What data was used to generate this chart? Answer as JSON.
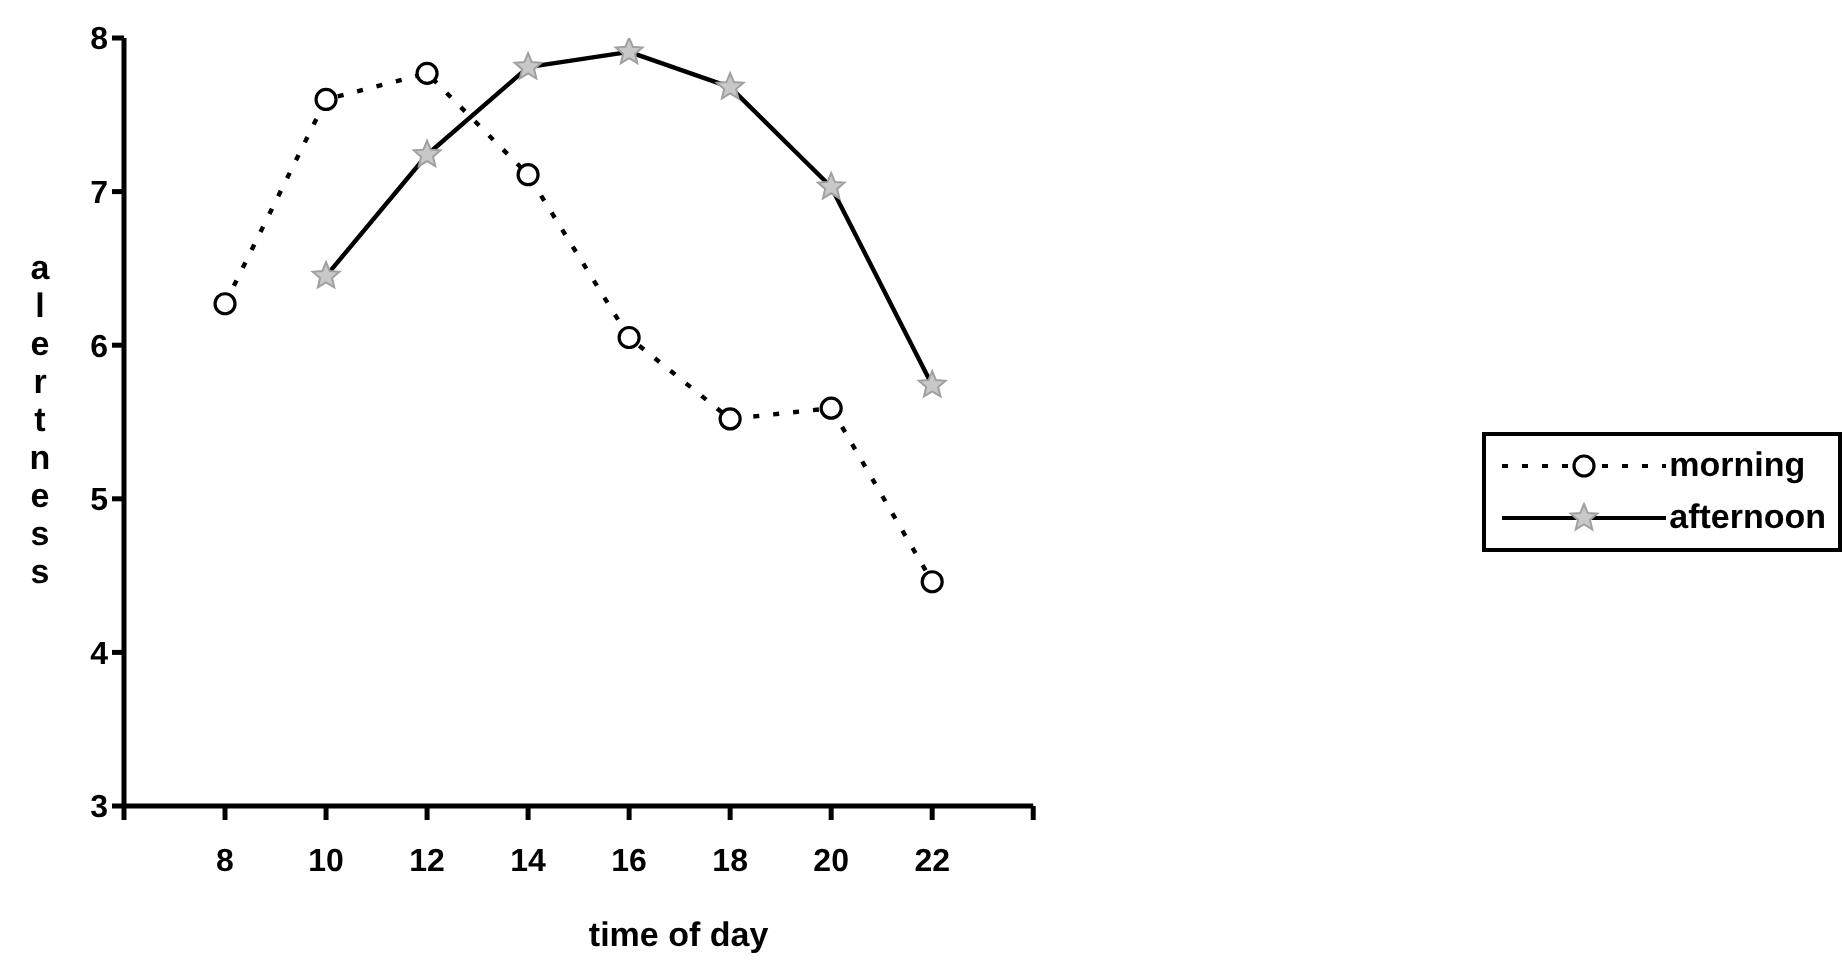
{
  "chart_data": {
    "type": "line",
    "xlabel": "time of day",
    "ylabel": "alertness",
    "xlim": [
      6,
      24
    ],
    "xticks": [
      {
        "value": 6,
        "label": null
      },
      8,
      10,
      12,
      14,
      16,
      18,
      20,
      22,
      {
        "value": 24,
        "label": null
      }
    ],
    "ylim": [
      3,
      8
    ],
    "yticks": [
      3,
      4,
      5,
      6,
      7,
      8
    ],
    "grid": false,
    "legend": "right",
    "series": [
      {
        "name": "morning",
        "color": "#000000",
        "marker": "circle",
        "line_style": "dotted",
        "x": [
          8,
          10,
          12,
          14,
          16,
          18,
          20,
          22
        ],
        "values": [
          6.27,
          7.6,
          7.77,
          7.11,
          6.05,
          5.52,
          5.59,
          4.46
        ]
      },
      {
        "name": "afternoon",
        "color": "#000000",
        "marker": "star",
        "line_style": "solid",
        "x": [
          10,
          12,
          14,
          16,
          18,
          20,
          22
        ],
        "values": [
          6.45,
          7.24,
          7.81,
          7.91,
          7.68,
          7.03,
          5.74
        ]
      }
    ]
  }
}
